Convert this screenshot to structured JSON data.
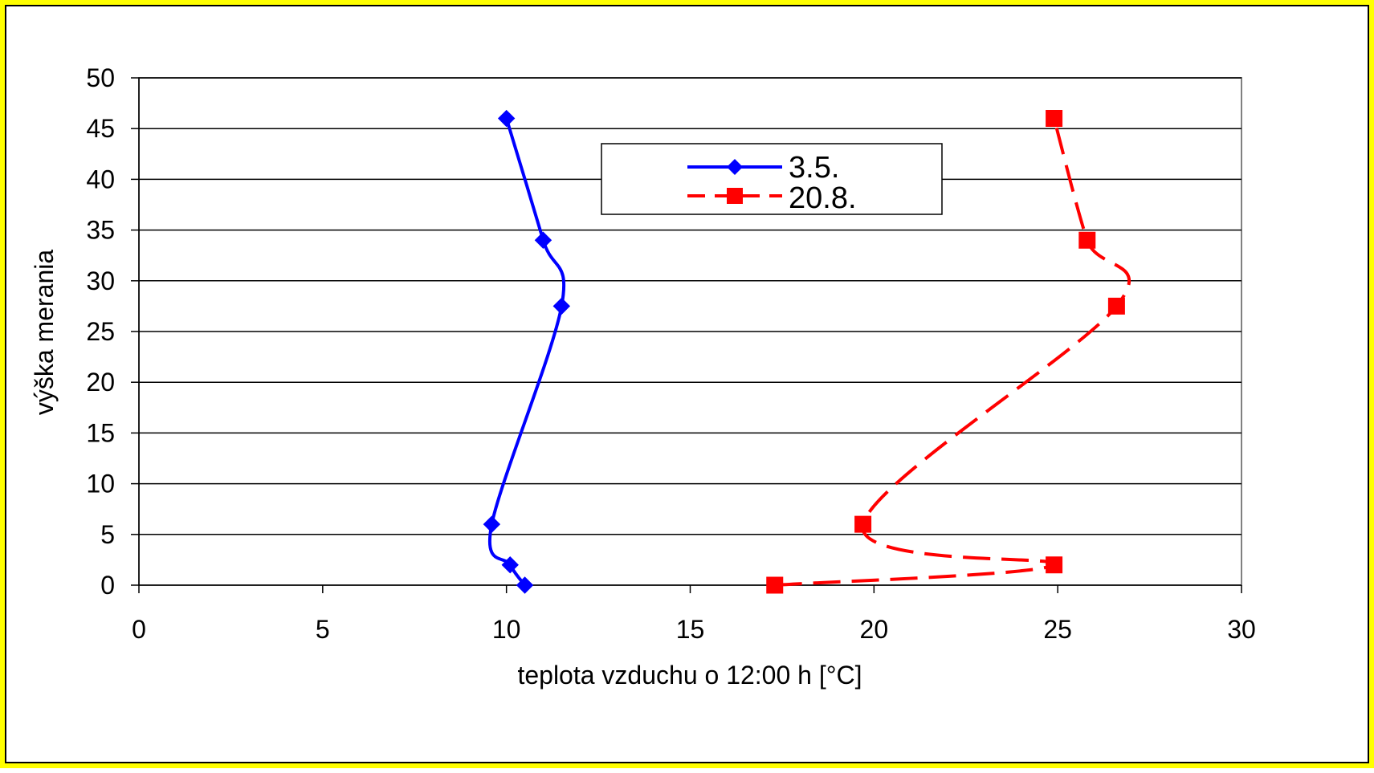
{
  "chart_data": {
    "type": "line",
    "title": "",
    "xlabel": "teplota vzduchu o 12:00 h [°C]",
    "ylabel": "výška merania",
    "xlim": [
      0,
      30
    ],
    "ylim": [
      0,
      50
    ],
    "xticks": [
      0,
      5,
      10,
      15,
      20,
      25,
      30
    ],
    "yticks": [
      0,
      5,
      10,
      15,
      20,
      25,
      30,
      35,
      40,
      45,
      50
    ],
    "grid": "horizontal",
    "legend_position": "top-center",
    "series": [
      {
        "name": "3.5.",
        "color": "#0000ff",
        "marker": "diamond",
        "line_style": "solid",
        "points": [
          {
            "x": 10.5,
            "y": 0
          },
          {
            "x": 10.1,
            "y": 2
          },
          {
            "x": 9.6,
            "y": 6
          },
          {
            "x": 11.5,
            "y": 27.5
          },
          {
            "x": 11.0,
            "y": 34
          },
          {
            "x": 10.0,
            "y": 46
          }
        ]
      },
      {
        "name": "20.8.",
        "color": "#ff0000",
        "marker": "square",
        "line_style": "dashed",
        "points": [
          {
            "x": 17.3,
            "y": 0
          },
          {
            "x": 24.9,
            "y": 2
          },
          {
            "x": 19.7,
            "y": 6
          },
          {
            "x": 26.6,
            "y": 27.5
          },
          {
            "x": 25.8,
            "y": 34
          },
          {
            "x": 24.9,
            "y": 46
          }
        ]
      }
    ]
  }
}
